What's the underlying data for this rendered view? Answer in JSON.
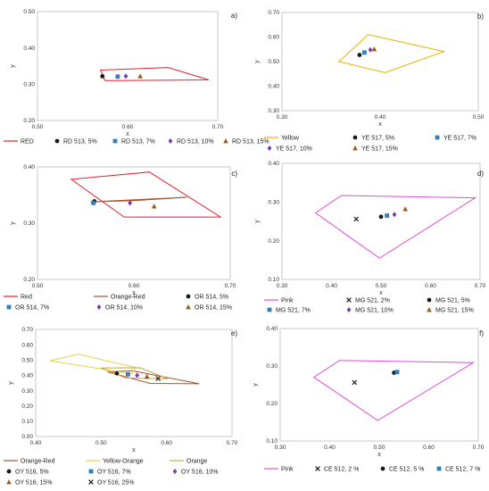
{
  "chart_data": [
    {
      "panel": "a)",
      "type": "scatter",
      "xlabel": "x",
      "ylabel": "y",
      "xlim": [
        0.5,
        0.7
      ],
      "ylim": [
        0.2,
        0.5
      ],
      "xticks": [
        "0.50",
        "0.60",
        "0.70"
      ],
      "yticks": [
        "0.20",
        "0.30",
        "0.40",
        "0.50"
      ],
      "regions": [
        {
          "name": "RED",
          "color": "#e0212b",
          "points": [
            [
              0.57,
              0.339
            ],
            [
              0.645,
              0.346
            ],
            [
              0.69,
              0.312
            ],
            [
              0.575,
              0.31
            ]
          ]
        }
      ],
      "series": [
        {
          "name": "RD 513, 5%",
          "marker": "circle",
          "color": "#1a1a1a",
          "points": [
            [
              0.572,
              0.322
            ]
          ]
        },
        {
          "name": "RD 513, 7%",
          "marker": "square",
          "color": "#2f7fb8",
          "points": [
            [
              0.589,
              0.321
            ]
          ]
        },
        {
          "name": "RD 513, 10%",
          "marker": "diamond",
          "color": "#7a3aa8",
          "points": [
            [
              0.598,
              0.322
            ]
          ]
        },
        {
          "name": "RD 513, 15%",
          "marker": "triangle",
          "color": "#9a5a1a",
          "points": [
            [
              0.614,
              0.322
            ]
          ]
        }
      ],
      "legend_rows": [
        [
          "RED",
          "RD 513, 5%",
          "RD 513, 7%",
          "RD 513, 10%",
          "RD 513, 15%"
        ]
      ]
    },
    {
      "panel": "b)",
      "type": "scatter",
      "xlabel": "x",
      "ylabel": "y",
      "xlim": [
        0.3,
        0.5
      ],
      "ylim": [
        0.3,
        0.7
      ],
      "xticks": [
        "0.30",
        "0.40",
        "0.50"
      ],
      "yticks": [
        "0.30",
        "0.40",
        "0.50",
        "0.60",
        "0.70"
      ],
      "regions": [
        {
          "name": "Yellow",
          "color": "#e7b400",
          "points": [
            [
              0.388,
              0.61
            ],
            [
              0.465,
              0.541
            ],
            [
              0.405,
              0.455
            ],
            [
              0.358,
              0.5
            ]
          ]
        }
      ],
      "series": [
        {
          "name": "YE 517, 5%",
          "marker": "circle",
          "color": "#1a1a1a",
          "points": [
            [
              0.379,
              0.527
            ]
          ]
        },
        {
          "name": "YE 517, 7%",
          "marker": "square",
          "color": "#2f7fb8",
          "points": [
            [
              0.384,
              0.537
            ]
          ]
        },
        {
          "name": "YE 517, 10%",
          "marker": "diamond",
          "color": "#7a3aa8",
          "points": [
            [
              0.39,
              0.548
            ]
          ]
        },
        {
          "name": "YE 517, 15%",
          "marker": "triangle",
          "color": "#9a5a1a",
          "points": [
            [
              0.394,
              0.551
            ]
          ]
        }
      ],
      "legend_rows": [
        [
          "Yellow",
          "YE 517, 5%",
          "YE 517, 7%"
        ],
        [
          "YE 517, 10%",
          "YE 517, 15%"
        ]
      ]
    },
    {
      "panel": "c)",
      "type": "scatter",
      "xlabel": "x",
      "ylabel": "y",
      "xlim": [
        0.5,
        0.7
      ],
      "ylim": [
        0.2,
        0.4
      ],
      "xticks": [
        "0.50",
        "0.60",
        "0.70"
      ],
      "yticks": [
        "0.20",
        "0.30",
        "0.40"
      ],
      "regions": [
        {
          "name": "Red",
          "color": "#e0212b",
          "points": [
            [
              0.535,
              0.378
            ],
            [
              0.616,
              0.391
            ],
            [
              0.69,
              0.311
            ],
            [
              0.59,
              0.311
            ]
          ]
        },
        {
          "name": "Orange-Red",
          "color": "#a6512a",
          "points": [
            [
              0.555,
              0.338
            ],
            [
              0.655,
              0.346
            ],
            [
              0.6,
              0.34
            ]
          ]
        }
      ],
      "series": [
        {
          "name": "OR 514, 5%",
          "marker": "circle",
          "color": "#1a1a1a",
          "points": [
            [
              0.559,
              0.339
            ]
          ]
        },
        {
          "name": "OR 514, 7%",
          "marker": "square",
          "color": "#2f7fb8",
          "points": [
            [
              0.558,
              0.336
            ]
          ]
        },
        {
          "name": "OR 514, 10%",
          "marker": "diamond",
          "color": "#7a3aa8",
          "points": [
            [
              0.596,
              0.336
            ]
          ]
        },
        {
          "name": "OR 514, 15%",
          "marker": "triangle",
          "color": "#9a5a1a",
          "points": [
            [
              0.621,
              0.33
            ]
          ]
        }
      ],
      "legend_rows": [
        [
          "Red",
          "Orange-Red",
          "OR 514, 5%"
        ],
        [
          "OR 514, 7%",
          "OR 514, 10%",
          "OR 514, 15%"
        ]
      ]
    },
    {
      "panel": "d)",
      "type": "scatter",
      "xlabel": "x",
      "ylabel": "y",
      "xlim": [
        0.3,
        0.7
      ],
      "ylim": [
        0.1,
        0.4
      ],
      "xticks": [
        "0.30",
        "0.40",
        "0.50",
        "0.60",
        "0.70"
      ],
      "yticks": [
        "0.10",
        "0.20",
        "0.30",
        "0.40"
      ],
      "regions": [
        {
          "name": "Pink",
          "color": "#d94fd8",
          "points": [
            [
              0.42,
              0.317
            ],
            [
              0.69,
              0.311
            ],
            [
              0.497,
              0.155
            ],
            [
              0.368,
              0.272
            ]
          ]
        }
      ],
      "series": [
        {
          "name": "MG 521, 2%",
          "marker": "x",
          "color": "#1a1a1a",
          "points": [
            [
              0.45,
              0.256
            ]
          ]
        },
        {
          "name": "MG 521, 5%",
          "marker": "circle",
          "color": "#1a1a1a",
          "points": [
            [
              0.5,
              0.262
            ]
          ]
        },
        {
          "name": "MG 521, 7%",
          "marker": "square",
          "color": "#2f7fb8",
          "points": [
            [
              0.512,
              0.265
            ]
          ]
        },
        {
          "name": "MG 521, 10%",
          "marker": "diamond",
          "color": "#7a3aa8",
          "points": [
            [
              0.527,
              0.268
            ]
          ]
        },
        {
          "name": "MG 521, 15%",
          "marker": "triangle",
          "color": "#9a5a1a",
          "points": [
            [
              0.549,
              0.282
            ]
          ]
        }
      ],
      "legend_rows": [
        [
          "Pink",
          "MG 521, 2%",
          "MG 521, 5%"
        ],
        [
          "MG 521, 7%",
          "MG 521, 10%",
          "MG 521, 15%"
        ]
      ]
    },
    {
      "panel": "e)",
      "type": "scatter",
      "xlabel": "x",
      "ylabel": "y",
      "xlim": [
        0.4,
        0.7
      ],
      "ylim": [
        0.0,
        0.7
      ],
      "xticks": [
        "0.40",
        "0.50",
        "0.60",
        "0.70"
      ],
      "yticks": [
        "0.00",
        "0.10",
        "0.20",
        "0.30",
        "0.40",
        "0.50",
        "0.60",
        "0.70"
      ],
      "regions": [
        {
          "name": "Orange-Red",
          "color": "#a6512a",
          "points": [
            [
              0.51,
              0.422
            ],
            [
              0.547,
              0.43
            ],
            [
              0.65,
              0.345
            ],
            [
              0.575,
              0.347
            ]
          ]
        },
        {
          "name": "Yellow-Orange",
          "color": "#e7d24a",
          "points": [
            [
              0.422,
              0.495
            ],
            [
              0.465,
              0.538
            ],
            [
              0.552,
              0.452
            ],
            [
              0.547,
              0.41
            ]
          ]
        },
        {
          "name": "Orange",
          "color": "#c9a64a",
          "points": [
            [
              0.5,
              0.448
            ],
            [
              0.56,
              0.449
            ],
            [
              0.602,
              0.377
            ],
            [
              0.537,
              0.383
            ]
          ]
        }
      ],
      "series": [
        {
          "name": "OY 516, 5%",
          "marker": "circle",
          "color": "#1a1a1a",
          "points": [
            [
              0.524,
              0.413
            ]
          ]
        },
        {
          "name": "OY 516, 7%",
          "marker": "square",
          "color": "#2f7fb8",
          "points": [
            [
              0.541,
              0.407
            ]
          ]
        },
        {
          "name": "OY 516, 10%",
          "marker": "diamond",
          "color": "#7a3aa8",
          "points": [
            [
              0.555,
              0.4
            ]
          ]
        },
        {
          "name": "OY 516, 15%",
          "marker": "triangle",
          "color": "#9a5a1a",
          "points": [
            [
              0.57,
              0.392
            ]
          ]
        },
        {
          "name": "OY 516, 25%",
          "marker": "x",
          "color": "#1a1a1a",
          "points": [
            [
              0.587,
              0.379
            ]
          ]
        }
      ],
      "legend_rows": [
        [
          "Orange-Red",
          "Yellow-Orange",
          "Orange"
        ],
        [
          "OY 516, 5%",
          "OY 516, 7%",
          "OY 516, 10%"
        ],
        [
          "OY 516, 15%",
          "OY 516, 25%"
        ]
      ]
    },
    {
      "panel": "f)",
      "type": "scatter",
      "xlabel": "x",
      "ylabel": "y",
      "xlim": [
        0.3,
        0.7
      ],
      "ylim": [
        0.1,
        0.4
      ],
      "xticks": [
        "0.30",
        "0.40",
        "0.50",
        "0.60",
        "0.70"
      ],
      "yticks": [
        "0.10",
        "0.20",
        "0.30",
        "0.40"
      ],
      "regions": [
        {
          "name": "Pink",
          "color": "#d94fd8",
          "points": [
            [
              0.42,
              0.315
            ],
            [
              0.69,
              0.309
            ],
            [
              0.497,
              0.155
            ],
            [
              0.368,
              0.27
            ]
          ]
        }
      ],
      "series": [
        {
          "name": "CE 512, 2 %",
          "marker": "x",
          "color": "#1a1a1a",
          "points": [
            [
              0.45,
              0.256
            ]
          ]
        },
        {
          "name": "CE 512, 5 %",
          "marker": "circle",
          "color": "#1a1a1a",
          "points": [
            [
              0.53,
              0.282
            ]
          ]
        },
        {
          "name": "CE 512, 7 %",
          "marker": "square",
          "color": "#2f7fb8",
          "points": [
            [
              0.536,
              0.284
            ]
          ]
        }
      ],
      "legend_rows": [
        [
          "Pink",
          "CE 512, 2 %",
          "CE 512, 5 %",
          "CE 512, 7 %"
        ]
      ]
    }
  ]
}
